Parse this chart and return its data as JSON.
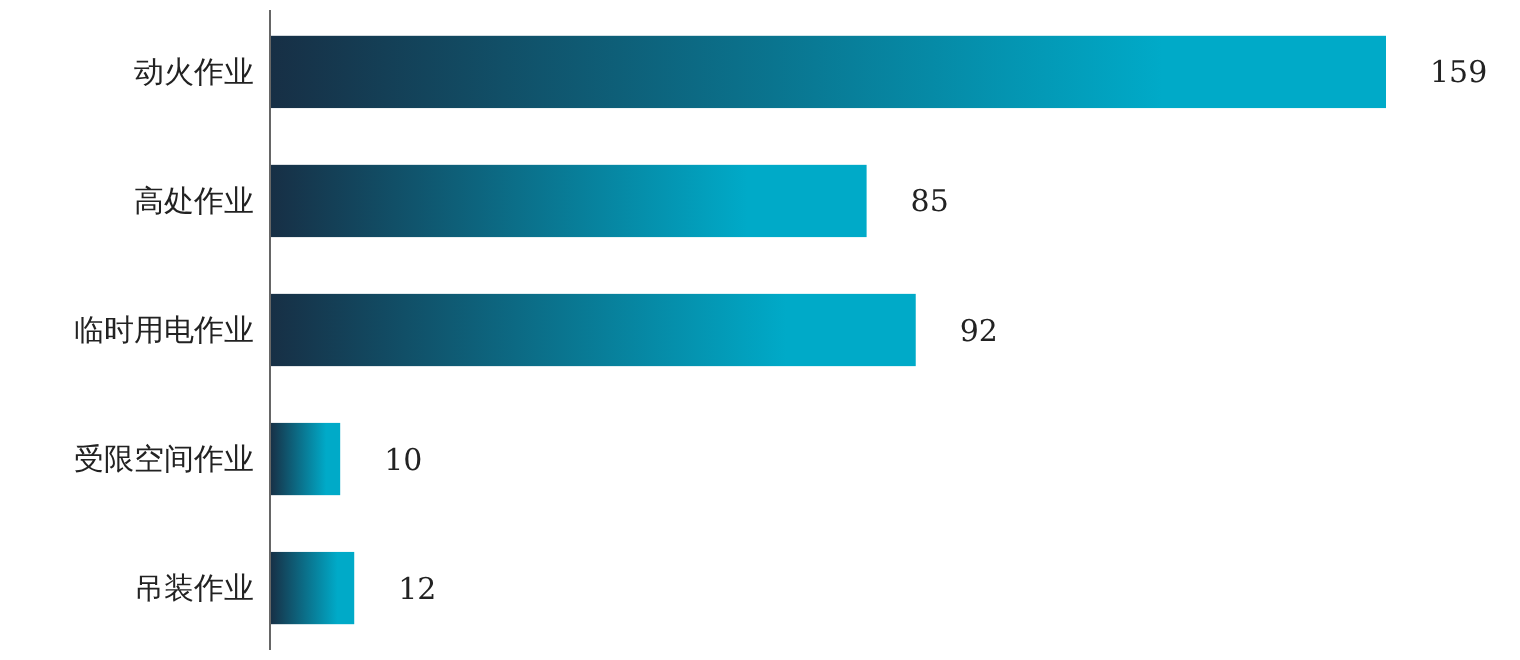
{
  "chart_data": {
    "type": "bar",
    "orientation": "horizontal",
    "categories": [
      "动火作业",
      "高处作业",
      "临时用电作业",
      "受限空间作业",
      "吊装作业"
    ],
    "values": [
      159,
      85,
      92,
      10,
      12
    ],
    "color": "#00aac8",
    "data_labels": true
  }
}
